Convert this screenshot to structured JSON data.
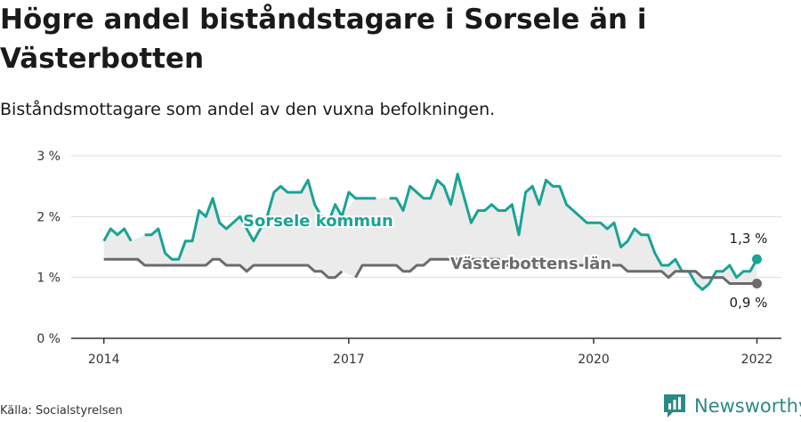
{
  "title": "Högre andel biståndstagare i Sorsele än i Västerbotten",
  "subtitle": "Biståndsmottagare som andel av den vuxna befolkningen.",
  "source": "Källa: Socialstyrelsen",
  "brand": "Newsworthy",
  "colors": {
    "sorsele": "#1aa394",
    "lan": "#6b6b6b",
    "band": "#ebebeb",
    "grid": "#dddddd",
    "axis": "#333333",
    "brand": "#2b8a86"
  },
  "chart_data": {
    "type": "line",
    "x_start": 2014.0,
    "x_step_months": 1,
    "xlim": [
      2013.6,
      2022.3
    ],
    "ylim": [
      0,
      3
    ],
    "y_ticks": [
      "0 %",
      "1 %",
      "2 %",
      "3 %"
    ],
    "x_ticks": [
      {
        "value": 2014,
        "label": "2014"
      },
      {
        "value": 2017,
        "label": "2017"
      },
      {
        "value": 2020,
        "label": "2020"
      },
      {
        "value": 2022,
        "label": "2022"
      }
    ],
    "grid": true,
    "series": [
      {
        "name": "Sorsele kommun",
        "label": "Sorsele kommun",
        "end_label": "1,3 %",
        "values": [
          1.6,
          1.8,
          1.7,
          1.8,
          1.6,
          null,
          1.7,
          1.7,
          1.8,
          1.4,
          1.3,
          1.3,
          1.6,
          1.6,
          2.1,
          2.0,
          2.3,
          1.9,
          1.8,
          1.9,
          2.0,
          1.8,
          1.6,
          1.8,
          2.0,
          2.4,
          2.5,
          2.4,
          2.4,
          2.4,
          2.6,
          2.2,
          2.0,
          1.9,
          2.2,
          2.0,
          2.4,
          2.3,
          2.3,
          2.3,
          2.3,
          null,
          2.3,
          2.3,
          2.1,
          2.5,
          2.4,
          2.3,
          2.3,
          2.6,
          2.5,
          2.2,
          2.7,
          2.3,
          1.9,
          2.1,
          2.1,
          2.2,
          2.1,
          2.1,
          2.2,
          1.7,
          2.4,
          2.5,
          2.2,
          2.6,
          2.5,
          2.5,
          2.2,
          2.1,
          2.0,
          1.9,
          1.9,
          1.9,
          1.8,
          1.9,
          1.5,
          1.6,
          1.8,
          1.7,
          1.7,
          1.4,
          1.2,
          1.2,
          1.3,
          1.1,
          1.1,
          0.9,
          0.8,
          0.9,
          1.1,
          1.1,
          1.2,
          1.0,
          1.1,
          1.1,
          1.3
        ]
      },
      {
        "name": "Västerbottens län",
        "label": "Västerbottens län",
        "end_label": "0,9 %",
        "values": [
          1.3,
          1.3,
          1.3,
          1.3,
          1.3,
          1.3,
          1.2,
          1.2,
          1.2,
          1.2,
          1.2,
          1.2,
          1.2,
          1.2,
          1.2,
          1.2,
          1.3,
          1.3,
          1.2,
          1.2,
          1.2,
          1.1,
          1.2,
          1.2,
          1.2,
          1.2,
          1.2,
          1.2,
          1.2,
          1.2,
          1.2,
          1.1,
          1.1,
          1.0,
          1.0,
          1.1,
          null,
          1.0,
          1.2,
          1.2,
          1.2,
          1.2,
          1.2,
          1.2,
          1.1,
          1.1,
          1.2,
          1.2,
          1.3,
          1.3,
          1.3,
          1.3,
          1.3,
          1.3,
          1.3,
          1.3,
          1.3,
          1.3,
          1.3,
          1.2,
          1.2,
          1.2,
          1.2,
          1.2,
          1.2,
          1.2,
          1.2,
          1.2,
          1.2,
          1.2,
          1.2,
          1.2,
          1.2,
          1.2,
          1.2,
          1.2,
          1.2,
          1.1,
          1.1,
          1.1,
          1.1,
          1.1,
          1.1,
          1.0,
          1.1,
          1.1,
          1.1,
          1.1,
          1.0,
          1.0,
          1.0,
          1.0,
          0.9,
          0.9,
          0.9,
          0.9,
          0.9
        ]
      }
    ]
  }
}
